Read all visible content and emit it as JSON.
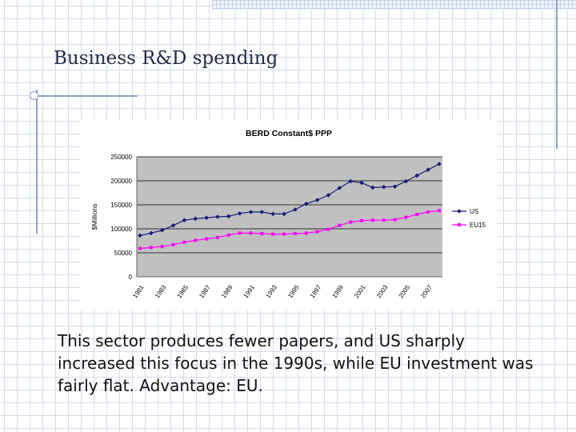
{
  "slide": {
    "title": "Business R&D spending",
    "body": "This sector produces fewer papers, and US sharply increased this focus in the 1990s, while EU investment was fairly flat.  Advantage: EU."
  },
  "chart_data": {
    "type": "line",
    "title": "BERD Constant$ PPP",
    "ylabel": "$Millions",
    "xlabel": "",
    "ylim": [
      0,
      250000
    ],
    "yticks": [
      "0",
      "50000",
      "100000",
      "150000",
      "200000",
      "250000"
    ],
    "x": [
      1981,
      1982,
      1983,
      1984,
      1985,
      1986,
      1987,
      1988,
      1989,
      1990,
      1991,
      1992,
      1993,
      1994,
      1995,
      1996,
      1997,
      1998,
      1999,
      2000,
      2001,
      2002,
      2003,
      2004,
      2005,
      2006,
      2007,
      2008
    ],
    "xtick_labels": [
      "1981",
      "1983",
      "1985",
      "1987",
      "1989",
      "1991",
      "1993",
      "1995",
      "1997",
      "1999",
      "2001",
      "2003",
      "2005",
      "2007"
    ],
    "series": [
      {
        "name": "US",
        "color": "#1a1a7a",
        "marker": "diamond",
        "values": [
          86000,
          91000,
          97000,
          107000,
          118000,
          121000,
          123000,
          125000,
          126000,
          132000,
          135000,
          135000,
          131000,
          131000,
          140000,
          152000,
          160000,
          170000,
          185000,
          199000,
          196000,
          186000,
          187000,
          188000,
          199000,
          211000,
          223000,
          235000
        ]
      },
      {
        "name": "EU15",
        "color": "#ff00ff",
        "marker": "square",
        "values": [
          59000,
          61000,
          63000,
          67000,
          72000,
          76000,
          79000,
          82000,
          87000,
          91000,
          91000,
          90000,
          89000,
          89000,
          90000,
          91000,
          94000,
          99000,
          107000,
          114000,
          117000,
          118000,
          118000,
          119000,
          124000,
          130000,
          135000,
          138000
        ]
      }
    ],
    "legend_position": "right",
    "plot_background": "#c0c0c0",
    "grid": true
  }
}
